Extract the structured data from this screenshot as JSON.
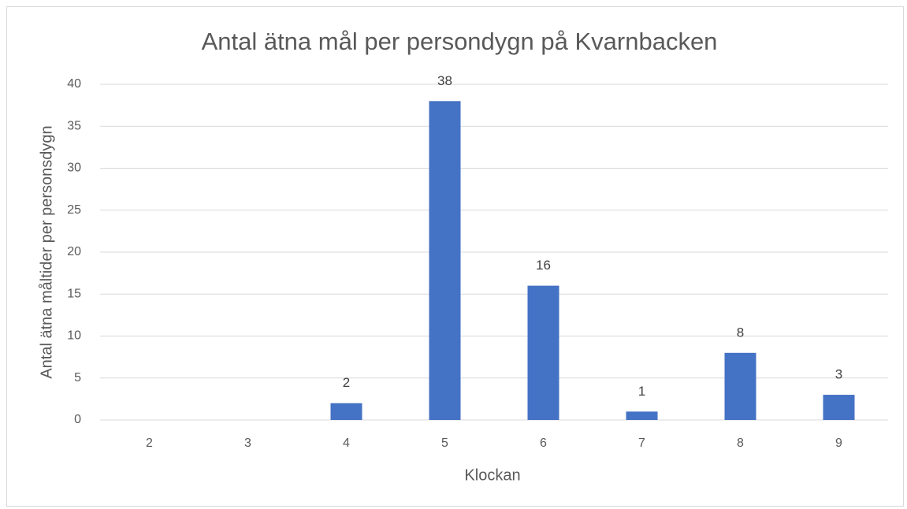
{
  "chart_data": {
    "type": "bar",
    "title": "Antal ätna mål per persondygn på Kvarnbacken",
    "x_label": "Klockan",
    "y_label": "Antal ätna måltider per personsdygn",
    "categories": [
      "2",
      "3",
      "4",
      "5",
      "6",
      "7",
      "8",
      "9"
    ],
    "values": [
      null,
      null,
      2,
      38,
      16,
      1,
      8,
      3
    ],
    "color": "#4472c4",
    "ylim": [
      0,
      40
    ],
    "yticks": [
      0,
      5,
      10,
      15,
      20,
      25,
      30,
      35,
      40
    ],
    "grid": true
  }
}
